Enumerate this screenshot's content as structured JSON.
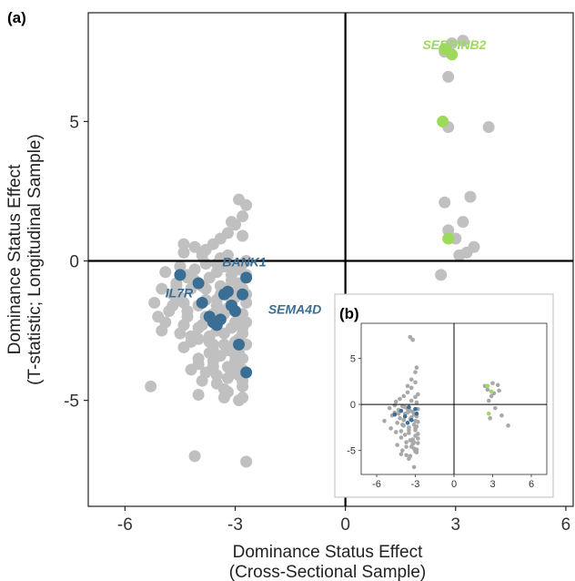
{
  "chart_data": [
    {
      "panel": "(a)",
      "type": "scatter",
      "xlabel_lines": [
        "Dominance Status Effect",
        "(Cross-Sectional Sample)"
      ],
      "ylabel_lines": [
        "Dominance Status Effect",
        "(T-statistic; Longitudinal Sample)"
      ],
      "xlim": [
        -7,
        6.2
      ],
      "ylim": [
        -8.8,
        8.9
      ],
      "xticks": [
        -6,
        -3,
        0,
        3,
        6
      ],
      "yticks": [
        -5,
        0,
        5
      ],
      "xtick_labels": [
        "-6",
        "-3",
        "0",
        "3",
        "6"
      ],
      "ytick_labels": [
        "-5",
        "0",
        "5"
      ],
      "reference_lines": {
        "x": 0,
        "y": 0
      },
      "colors": {
        "background": "#c0c0c0",
        "highlight_neg": "#3a6e94",
        "highlight_pos": "#9dd95a"
      },
      "series": [
        {
          "group": "background",
          "x": [
            -5.2,
            -5.1,
            -5.0,
            -5.0,
            -4.9,
            -4.9,
            -4.8,
            -4.7,
            -4.6,
            -4.5,
            -4.5,
            -4.4,
            -4.4,
            -4.3,
            -4.3,
            -4.2,
            -4.2,
            -4.1,
            -4.0,
            -4.0,
            -3.9,
            -3.9,
            -3.8,
            -3.8,
            -3.7,
            -3.7,
            -3.6,
            -3.6,
            -3.5,
            -3.5,
            -3.4,
            -3.3,
            -3.3,
            -3.2,
            -3.2,
            -3.1,
            -3.1,
            -3.0,
            -3.0,
            -2.9,
            -2.9,
            -2.8,
            -2.8,
            -2.7,
            -4.4,
            -4.1,
            -3.9,
            -3.6,
            -3.4,
            -3.2,
            -3.0,
            -2.8,
            -4.6,
            -4.3,
            -4.0,
            -3.7,
            -3.5,
            -3.3,
            -3.1,
            -2.9,
            -2.7,
            -4.2,
            -3.9,
            -3.6,
            -3.3,
            -3.0,
            -2.8,
            -4.5,
            -4.1,
            -3.8,
            -3.4,
            -3.1,
            -2.9,
            -2.7,
            -4.4,
            -4.0,
            -3.7,
            -3.5,
            -3.2,
            -2.9,
            -2.7,
            -3.8,
            -3.5,
            -3.2,
            -3.0,
            -2.8,
            -4.0,
            -3.6,
            -3.3,
            -3.0,
            -2.8,
            -3.5,
            -3.2,
            -2.9,
            -2.7,
            -3.8,
            -3.4,
            -3.1,
            -2.8,
            -3.3,
            -3.0,
            -2.7,
            -3.1,
            -2.8,
            -2.7,
            -2.9,
            -2.8,
            -4.3,
            -3.9,
            -3.5,
            -3.1,
            -2.8,
            -4.2,
            -3.8,
            -3.4,
            -3.0,
            -2.8,
            -3.6,
            -3.2,
            -2.9,
            -2.8,
            -4.4,
            -4.7,
            -4.0,
            -3.3,
            -2.9,
            -5.3,
            -4.1,
            -2.7,
            2.6,
            2.7,
            2.8,
            2.8,
            2.9,
            3.0,
            3.1,
            3.2,
            3.3,
            3.4,
            3.5,
            3.9,
            3.2,
            2.8,
            2.7
          ],
          "y": [
            -1.5,
            -2.0,
            -2.5,
            -1.0,
            -0.4,
            -2.2,
            -1.8,
            -1.2,
            -0.8,
            -2.6,
            -0.2,
            -1.5,
            -3.1,
            -0.6,
            -2.0,
            -1.0,
            -2.9,
            -0.3,
            -1.6,
            -3.5,
            -0.9,
            -2.3,
            -0.1,
            -1.4,
            -2.7,
            -0.6,
            -1.9,
            -3.8,
            -0.4,
            -2.5,
            -1.2,
            -0.2,
            -3.0,
            -1.7,
            -4.2,
            -0.7,
            -2.4,
            -3.6,
            -1.1,
            -0.3,
            -2.8,
            -1.9,
            -4.5,
            -0.5,
            0.3,
            0.5,
            0.2,
            0.6,
            0.8,
            1.0,
            1.3,
            1.6,
            -0.9,
            -1.8,
            -2.4,
            -3.3,
            -4.1,
            -4.6,
            -3.1,
            -2.0,
            -1.2,
            -3.9,
            -4.3,
            -3.0,
            -2.6,
            -3.4,
            -3.9,
            -1.3,
            -0.7,
            -1.0,
            -0.9,
            -1.5,
            -0.8,
            -2.2,
            -2.3,
            -3.7,
            -2.9,
            -1.6,
            -3.2,
            -4.1,
            -3.0,
            -4.0,
            -4.4,
            -4.7,
            -4.0,
            -4.9,
            -2.8,
            -3.2,
            -1.9,
            -2.2,
            -2.6,
            -0.1,
            0.2,
            -0.3,
            0.0,
            0.4,
            0.1,
            -0.5,
            -0.1,
            -1.0,
            -1.3,
            -1.5,
            1.4,
            0.9,
            2.0,
            2.2,
            -3.5,
            -0.5,
            -0.9,
            -1.4,
            -0.2,
            -1.0,
            -2.7,
            -2.0,
            -3.4,
            -2.9,
            -2.4,
            -3.6,
            -3.8,
            -3.3,
            -4.3,
            0.6,
            -1.6,
            -4.8,
            -4.9,
            -5.0,
            -4.5,
            -7.0,
            -7.2,
            -0.5,
            2.1,
            4.8,
            1.1,
            7.8,
            0.8,
            0.2,
            1.4,
            0.3,
            2.3,
            0.5,
            4.8,
            7.9,
            6.6,
            7.5
          ],
          "size": "large"
        },
        {
          "group": "highlight_neg",
          "x": [
            -4.5,
            -4.0,
            -3.9,
            -3.7,
            -3.5,
            -3.3,
            -3.2,
            -3.0,
            -2.9,
            -2.8,
            -2.7,
            -2.7,
            -3.4,
            -3.6,
            -3.1
          ],
          "y": [
            -0.5,
            -0.8,
            -1.5,
            -2.0,
            -2.3,
            -1.2,
            -1.1,
            -1.8,
            -3.0,
            -1.2,
            -0.6,
            -4.0,
            -2.1,
            -2.2,
            -1.6
          ],
          "size": "large"
        },
        {
          "group": "highlight_pos",
          "x": [
            2.7,
            2.9,
            2.65,
            2.8
          ],
          "y": [
            7.6,
            7.4,
            5.0,
            0.8
          ],
          "size": "large"
        }
      ],
      "annotations": [
        {
          "text": "SERPINB2",
          "x": 2.1,
          "y": 7.6,
          "group": "highlight_pos"
        },
        {
          "text": "BANK1",
          "x": -3.35,
          "y": -0.2,
          "group": "highlight_neg"
        },
        {
          "text": "IL7R",
          "x": -4.9,
          "y": -1.3,
          "group": "highlight_neg"
        },
        {
          "text": "SEMA4D",
          "x": -2.1,
          "y": -1.9,
          "group": "highlight_neg"
        }
      ]
    },
    {
      "panel": "(b)",
      "type": "scatter",
      "xlim": [
        -7.2,
        7.2
      ],
      "ylim": [
        -7.6,
        8.8
      ],
      "xticks": [
        -6,
        -3,
        0,
        3,
        6
      ],
      "yticks": [
        -5,
        0,
        5
      ],
      "xtick_labels": [
        "-6",
        "-3",
        "0",
        "3",
        "6"
      ],
      "ytick_labels": [
        "-5",
        "0",
        "5"
      ],
      "reference_lines": {
        "x": 0,
        "y": 0
      },
      "colors": {
        "background": "#a8a8a8",
        "highlight_neg": "#3a6e94",
        "highlight_pos": "#9dd95a"
      },
      "series": [
        {
          "group": "background",
          "x": [
            -5.4,
            -5.0,
            -4.9,
            -4.8,
            -4.6,
            -4.5,
            -4.4,
            -4.3,
            -4.2,
            -4.1,
            -4.0,
            -3.9,
            -3.8,
            -3.7,
            -3.6,
            -3.5,
            -3.4,
            -3.3,
            -3.2,
            -3.1,
            -3.0,
            -2.9,
            -2.8,
            -4.5,
            -4.2,
            -3.9,
            -3.6,
            -3.3,
            -3.0,
            -2.8,
            -4.4,
            -4.0,
            -3.7,
            -3.4,
            -3.1,
            -2.9,
            -4.6,
            -4.1,
            -3.8,
            -3.5,
            -3.2,
            -3.0,
            -2.8,
            -3.6,
            -3.3,
            -3.0,
            -2.9,
            -3.8,
            -3.4,
            -3.1,
            -2.9,
            -3.5,
            -3.2,
            -3.0,
            -2.8,
            -4.3,
            -3.9,
            -3.5,
            -3.2,
            -2.9,
            -4.0,
            -3.6,
            -3.3,
            -3.0,
            -2.8,
            -3.7,
            -3.4,
            -3.1,
            -2.9,
            -3.3,
            -3.0,
            -2.8,
            -3.4,
            -3.2,
            -3.0,
            -4.1,
            -3.1,
            2.4,
            2.6,
            2.7,
            2.8,
            2.9,
            3.0,
            3.1,
            3.2,
            3.4,
            3.5,
            3.7,
            4.2
          ],
          "y": [
            -1.8,
            -0.4,
            -2.6,
            -1.2,
            -0.9,
            -3.0,
            -2.0,
            -0.6,
            -1.5,
            -3.6,
            -0.2,
            -2.3,
            -1.0,
            -4.1,
            -0.5,
            -2.8,
            -1.6,
            -4.6,
            -0.8,
            -2.2,
            -3.4,
            -1.3,
            -4.2,
            0.3,
            0.6,
            0.9,
            1.3,
            1.8,
            2.4,
            1.1,
            -4.4,
            -5.0,
            -5.5,
            -3.9,
            -4.8,
            -5.2,
            -0.1,
            -2.9,
            -3.3,
            -5.9,
            -4.0,
            -2.6,
            -1.9,
            2.0,
            2.7,
            3.5,
            4.0,
            -0.3,
            -0.7,
            -1.1,
            0.2,
            -3.1,
            -4.3,
            -5.1,
            -3.7,
            -1.0,
            -1.7,
            -2.5,
            -3.8,
            -4.9,
            -2.2,
            -0.9,
            -1.4,
            -2.8,
            -3.2,
            -4.6,
            -5.6,
            -4.1,
            -2.4,
            0.4,
            0.8,
            -0.5,
            7.3,
            7.0,
            -1.8,
            -5.4,
            -6.8,
            2.0,
            1.6,
            0.4,
            -1.5,
            0.9,
            2.3,
            1.2,
            -0.4,
            2.1,
            1.5,
            -1.2,
            -2.3
          ],
          "size": "small"
        },
        {
          "group": "highlight_neg",
          "x": [
            -4.6,
            -4.1,
            -3.8,
            -3.5,
            -3.3,
            -3.0,
            -2.9,
            -3.6
          ],
          "y": [
            -1.1,
            -0.7,
            -1.3,
            -0.3,
            -1.7,
            -0.5,
            -1.0,
            -2.0
          ],
          "size": "small"
        },
        {
          "group": "highlight_pos",
          "x": [
            2.6,
            2.9,
            2.7
          ],
          "y": [
            2.0,
            1.4,
            -1.0
          ],
          "size": "small"
        }
      ]
    }
  ]
}
